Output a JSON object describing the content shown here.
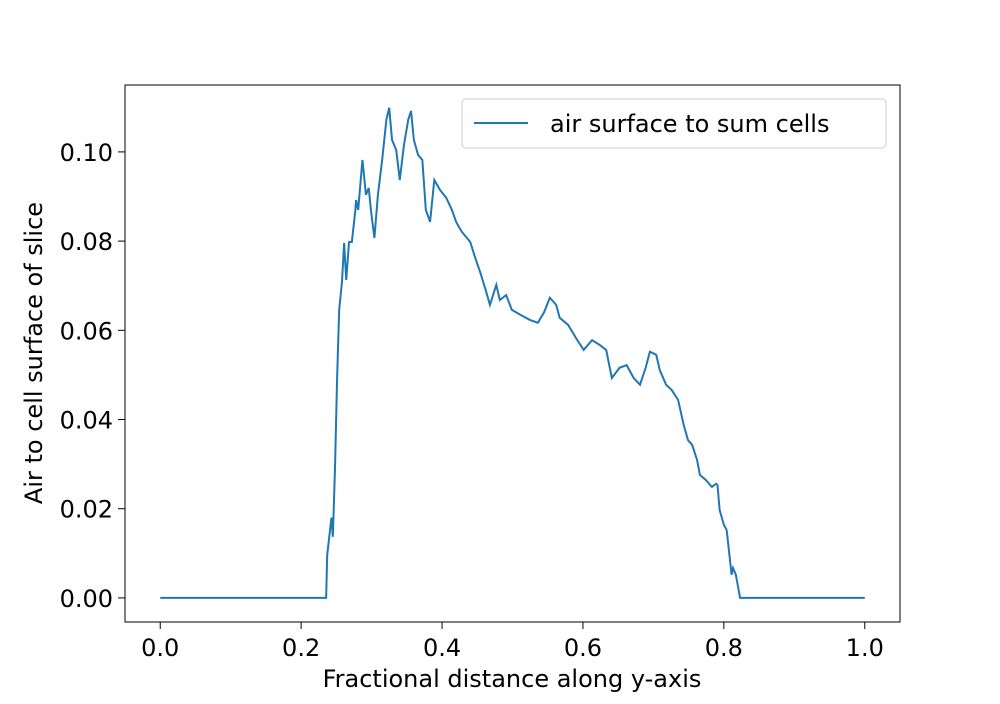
{
  "chart_data": {
    "type": "line",
    "xlabel": "Fractional distance along y-axis",
    "ylabel": "Air to cell surface of slice",
    "xlim": [
      -0.05,
      1.05
    ],
    "ylim": [
      -0.0054,
      0.115
    ],
    "xticks": [
      {
        "value": 0,
        "label": "0.0"
      },
      0.2,
      0.4,
      0.6,
      0.8,
      {
        "value": 1,
        "label": "1.0"
      }
    ],
    "yticks": [
      {
        "value": 0,
        "label": "0.00"
      },
      {
        "value": 0.02,
        "label": "0.02"
      },
      {
        "value": 0.04,
        "label": "0.04"
      },
      {
        "value": 0.06,
        "label": "0.06"
      },
      {
        "value": 0.08,
        "label": "0.08"
      },
      {
        "value": 0.1,
        "label": "0.10"
      }
    ],
    "legend": "upper right",
    "x": [
      0,
      0.2355,
      0.237,
      0.243,
      0.245,
      0.248,
      0.251,
      0.254,
      0.258,
      0.261,
      0.264,
      0.268,
      0.272,
      0.277,
      0.278,
      0.281,
      0.287,
      0.292,
      0.296,
      0.299,
      0.304,
      0.309,
      0.315,
      0.321,
      0.325,
      0.329,
      0.335,
      0.34,
      0.346,
      0.352,
      0.356,
      0.36,
      0.366,
      0.372,
      0.377,
      0.383,
      0.389,
      0.397,
      0.406,
      0.414,
      0.42,
      0.428,
      0.44,
      0.448,
      0.454,
      0.462,
      0.468,
      0.477,
      0.482,
      0.491,
      0.499,
      0.511,
      0.525,
      0.536,
      0.545,
      0.553,
      0.562,
      0.567,
      0.579,
      0.59,
      0.601,
      0.613,
      0.624,
      0.633,
      0.641,
      0.652,
      0.662,
      0.672,
      0.681,
      0.689,
      0.695,
      0.704,
      0.709,
      0.718,
      0.726,
      0.735,
      0.743,
      0.749,
      0.755,
      0.762,
      0.766,
      0.774,
      0.783,
      0.789,
      0.791,
      0.794,
      0.8,
      0.804,
      0.811,
      0.813,
      0.817,
      0.823,
      1.0
    ],
    "series": [
      {
        "name": "air surface to sum cells",
        "color": "#1f77b4",
        "values": [
          0,
          0,
          0.0096,
          0.018,
          0.0137,
          0.0287,
          0.0489,
          0.0646,
          0.0709,
          0.0796,
          0.0713,
          0.0798,
          0.0798,
          0.087,
          0.0892,
          0.087,
          0.0982,
          0.0904,
          0.0919,
          0.087,
          0.0807,
          0.0904,
          0.0982,
          0.1072,
          0.1099,
          0.1027,
          0.1004,
          0.0937,
          0.1016,
          0.1072,
          0.1092,
          0.1027,
          0.0993,
          0.0982,
          0.087,
          0.0843,
          0.0937,
          0.0915,
          0.0897,
          0.087,
          0.0843,
          0.0821,
          0.0798,
          0.0758,
          0.0731,
          0.069,
          0.0657,
          0.0702,
          0.0668,
          0.0679,
          0.0646,
          0.0635,
          0.0623,
          0.0617,
          0.0641,
          0.0673,
          0.0657,
          0.0628,
          0.0612,
          0.0583,
          0.0556,
          0.0578,
          0.0567,
          0.0556,
          0.0493,
          0.0516,
          0.0522,
          0.0493,
          0.0478,
          0.0516,
          0.0552,
          0.0545,
          0.0511,
          0.0478,
          0.0466,
          0.0444,
          0.0388,
          0.0354,
          0.0343,
          0.0309,
          0.0276,
          0.0265,
          0.0249,
          0.0256,
          0.0253,
          0.0197,
          0.0164,
          0.0152,
          0.0052,
          0.0067,
          0.0052,
          0,
          0
        ]
      }
    ]
  }
}
